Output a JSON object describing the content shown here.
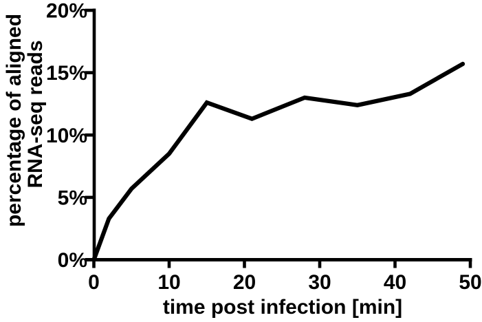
{
  "chart_data": {
    "type": "line",
    "title": "",
    "xlabel": "time post infection [min]",
    "ylabel": "percentage of aligned RNA-seq reads",
    "ylabel_lines": [
      "percentage of aligned",
      "RNA-seq reads"
    ],
    "x": [
      0,
      2,
      5,
      10,
      15,
      21,
      28,
      35,
      42,
      49
    ],
    "y_percent": [
      0,
      3.3,
      5.7,
      8.5,
      12.6,
      11.3,
      13.0,
      12.4,
      13.3,
      15.7
    ],
    "xlim": [
      0,
      50
    ],
    "ylim": [
      0,
      20
    ],
    "x_ticks": [
      0,
      10,
      20,
      30,
      40,
      50
    ],
    "x_tick_labels": [
      "0",
      "10",
      "20",
      "30",
      "40",
      "50"
    ],
    "y_ticks": [
      0,
      5,
      10,
      15,
      20
    ],
    "y_tick_labels": [
      "0%",
      "5%",
      "10%",
      "15%",
      "20%"
    ],
    "legend": "none",
    "grid": false,
    "line_color": "#000000",
    "axis_color": "#000000",
    "background_color": "#ffffff"
  }
}
